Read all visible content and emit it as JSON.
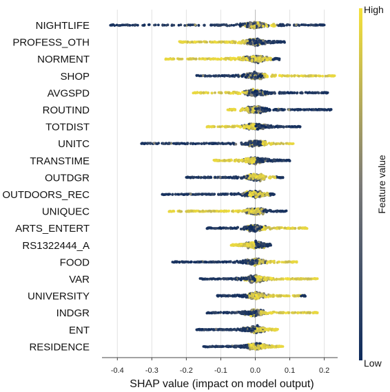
{
  "chart_data": {
    "type": "scatter",
    "subtype": "beeswarm",
    "xlabel": "SHAP value (impact on model output)",
    "x_ticks": [
      "-0.4",
      "-0.3",
      "-0.2",
      "-0.1",
      "0.0",
      "0.1",
      "0.2"
    ],
    "x_tick_values": [
      -0.4,
      -0.3,
      -0.2,
      -0.1,
      0.0,
      0.1,
      0.2
    ],
    "xlim": [
      -0.45,
      0.24
    ],
    "grid": "vertical",
    "colorbar": {
      "label": "Feature value",
      "high_label": "High",
      "low_label": "Low",
      "low_color": "#0d2a5c",
      "mid_color": "#7c7b78",
      "high_color": "#f5e23a"
    },
    "features": [
      {
        "name": "NIGHTLIFE",
        "min": -0.42,
        "max": 0.2,
        "low_side": "both",
        "high_range": [
          -0.02,
          0.06
        ],
        "spread": 0.7
      },
      {
        "name": "PROFESS_OTH",
        "min": -0.22,
        "max": 0.085,
        "low_side": "right",
        "high_range": [
          -0.22,
          -0.02
        ],
        "spread": 0.55
      },
      {
        "name": "NORMENT",
        "min": -0.26,
        "max": 0.07,
        "low_side": "right",
        "high_range": [
          -0.26,
          0.05
        ],
        "spread": 0.8
      },
      {
        "name": "SHOP",
        "min": -0.17,
        "max": 0.23,
        "low_side": "left",
        "high_range": [
          0.02,
          0.23
        ],
        "spread": 0.55
      },
      {
        "name": "AVGSPD",
        "min": -0.18,
        "max": 0.21,
        "low_side": "right",
        "high_range": [
          -0.18,
          -0.02
        ],
        "spread": 0.55
      },
      {
        "name": "ROUTIND",
        "min": -0.08,
        "max": 0.22,
        "low_side": "right",
        "high_range": [
          -0.08,
          0.0
        ],
        "spread": 0.5
      },
      {
        "name": "TOTDIST",
        "min": -0.14,
        "max": 0.13,
        "low_side": "right",
        "high_range": [
          -0.14,
          0.0
        ],
        "spread": 0.5
      },
      {
        "name": "UNITC",
        "min": -0.33,
        "max": 0.11,
        "low_side": "left",
        "high_range": [
          0.02,
          0.11
        ],
        "spread": 0.5
      },
      {
        "name": "TRANSTIME",
        "min": -0.12,
        "max": 0.1,
        "low_side": "right",
        "high_range": [
          -0.12,
          0.0
        ],
        "spread": 0.5
      },
      {
        "name": "OUTDGR",
        "min": -0.2,
        "max": 0.08,
        "low_side": "left",
        "high_range": [
          -0.02,
          0.06
        ],
        "spread": 0.5
      },
      {
        "name": "OUTDOORS_REC",
        "min": -0.27,
        "max": 0.055,
        "low_side": "left",
        "high_range": [
          -0.02,
          0.04
        ],
        "spread": 0.45
      },
      {
        "name": "UNIQUEC",
        "min": -0.25,
        "max": 0.09,
        "low_side": "left",
        "high_range": [
          -0.25,
          0.02
        ],
        "spread": 0.45
      },
      {
        "name": "ARTS_ENTERT",
        "min": -0.14,
        "max": 0.15,
        "low_side": "left",
        "high_range": [
          0.02,
          0.15
        ],
        "spread": 0.45
      },
      {
        "name": "RS1322444_A",
        "min": -0.07,
        "max": 0.045,
        "low_side": "right",
        "high_range": [
          -0.07,
          0.0
        ],
        "spread": 0.4
      },
      {
        "name": "FOOD",
        "min": -0.24,
        "max": 0.12,
        "low_side": "left",
        "high_range": [
          0.01,
          0.12
        ],
        "spread": 0.45
      },
      {
        "name": "VAR",
        "min": -0.16,
        "max": 0.18,
        "low_side": "left",
        "high_range": [
          0.0,
          0.18
        ],
        "spread": 0.5
      },
      {
        "name": "UNIVERSITY",
        "min": -0.11,
        "max": 0.145,
        "low_side": "left",
        "high_range": [
          -0.02,
          0.14
        ],
        "spread": 0.4
      },
      {
        "name": "INDGR",
        "min": -0.14,
        "max": 0.18,
        "low_side": "left",
        "high_range": [
          0.01,
          0.18
        ],
        "spread": 0.4
      },
      {
        "name": "ENT",
        "min": -0.17,
        "max": 0.065,
        "low_side": "left",
        "high_range": [
          0.0,
          0.065
        ],
        "spread": 0.4
      },
      {
        "name": "RESIDENCE",
        "min": -0.15,
        "max": 0.08,
        "low_side": "left",
        "high_range": [
          -0.02,
          0.08
        ],
        "spread": 0.4
      }
    ]
  }
}
